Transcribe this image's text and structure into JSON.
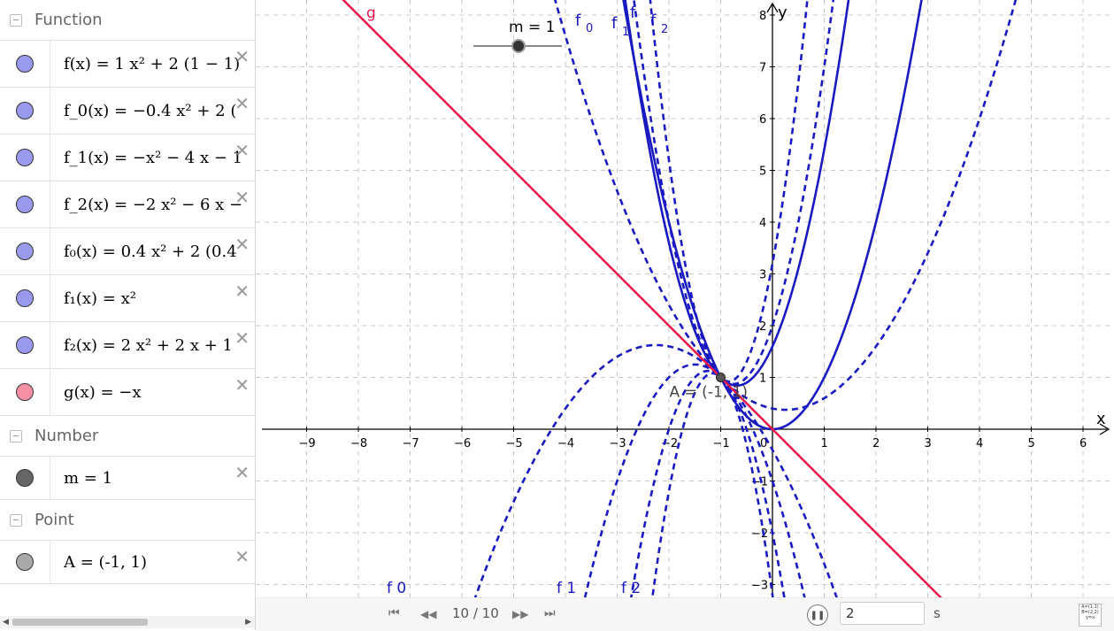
{
  "algebra": {
    "categories": {
      "function": "Function",
      "number": "Number",
      "point": "Point"
    },
    "items": [
      {
        "text": "f(x) = 1 x² + 2 (1 − 1)",
        "color": "#9999ee"
      },
      {
        "text": "f_0(x) = −0.4 x² + 2 (",
        "color": "#9999ee"
      },
      {
        "text": "f_1(x) = −x² − 4 x − 1",
        "color": "#9999ee"
      },
      {
        "text": "f_2(x) = −2 x² − 6 x −",
        "color": "#9999ee"
      },
      {
        "text": "f₀(x) = 0.4 x² + 2 (0.4",
        "color": "#9999ee"
      },
      {
        "text": "f₁(x) = x²",
        "color": "#9999ee"
      },
      {
        "text": "f₂(x) = 2 x² + 2 x + 1",
        "color": "#9999ee"
      },
      {
        "text": "g(x) = −x",
        "color": "#f48fa4"
      },
      {
        "text": "m = 1",
        "color": "#666666"
      },
      {
        "text": "A = (-1, 1)",
        "color": "#aaaaaa"
      }
    ],
    "delete_glyph": "✕"
  },
  "graph": {
    "x_axis_label": "x",
    "y_axis_label": "y",
    "x_ticks": [
      "−9",
      "−8",
      "−7",
      "−6",
      "−5",
      "−4",
      "−3",
      "−2",
      "−1",
      "0",
      "1",
      "2",
      "3",
      "4",
      "5",
      "6"
    ],
    "y_ticks": [
      "8",
      "7",
      "6",
      "5",
      "4",
      "3",
      "2",
      "1",
      "−1",
      "−2",
      "−3"
    ],
    "slider_label": "m = 1",
    "slider_value": 1,
    "point_label": "A = (-1, 1)",
    "curve_labels": {
      "g": "g",
      "f0_top_base": "f",
      "f0_top_sub": "0",
      "f1_top_base": "f",
      "f1_top_sub": "1",
      "f_top": "f",
      "f2_top_base": "f",
      "f2_top_sub": "2",
      "f0_bottom": "f 0",
      "f1_bottom": "f 1",
      "f2_bottom": "f 2"
    },
    "colors": {
      "curves": "#1a1ac2",
      "line_g": "#e8194d",
      "grid": "#c8c8c8"
    }
  },
  "animation": {
    "frame": "10 / 10",
    "speed_value": "2",
    "speed_unit": "s",
    "buttons": {
      "first": "⏮",
      "prev": "◀◀",
      "next": "▶▶",
      "last": "⏭",
      "pause": "❚❚"
    }
  }
}
